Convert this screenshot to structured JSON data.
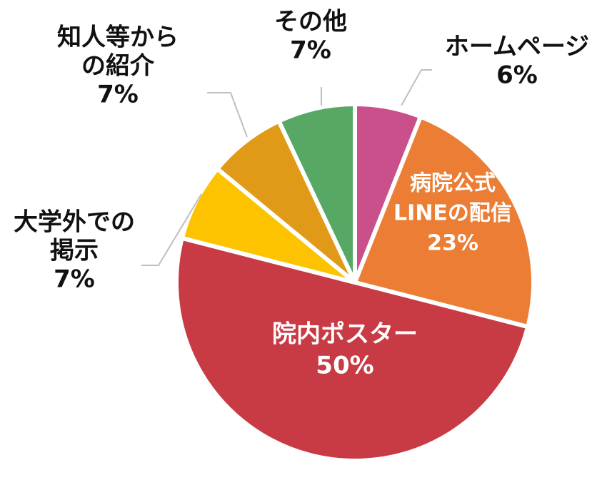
{
  "chart_data": {
    "type": "pie",
    "slices": [
      {
        "label": "ホームページ",
        "value": 6,
        "value_label": "6%",
        "color": "#C9508B"
      },
      {
        "label": "病院公式LINEの配信",
        "value": 23,
        "value_label": "23%",
        "color": "#EB7E34"
      },
      {
        "label": "院内ポスター",
        "value": 50,
        "value_label": "50%",
        "color": "#C83A44"
      },
      {
        "label": "大学外での掲示",
        "value": 7,
        "value_label": "7%",
        "color": "#FDC300"
      },
      {
        "label": "知人等からの紹介",
        "value": 7,
        "value_label": "7%",
        "color": "#E09A18"
      },
      {
        "label": "その他",
        "value": 7,
        "value_label": "7%",
        "color": "#57A865"
      }
    ],
    "label_lines": {
      "ホームページ": [
        "ホームページ"
      ],
      "病院公式LINEの配信": [
        "病院公式",
        "LINEの配信"
      ],
      "院内ポスター": [
        "院内ポスター"
      ],
      "大学外での掲示": [
        "大学外での",
        "掲示"
      ],
      "知人等からの紹介": [
        "知人等から",
        "の紹介"
      ],
      "その他": [
        "その他"
      ]
    },
    "leader_line_color": "#BFBFBF",
    "edge_color": "#FFFFFF"
  }
}
